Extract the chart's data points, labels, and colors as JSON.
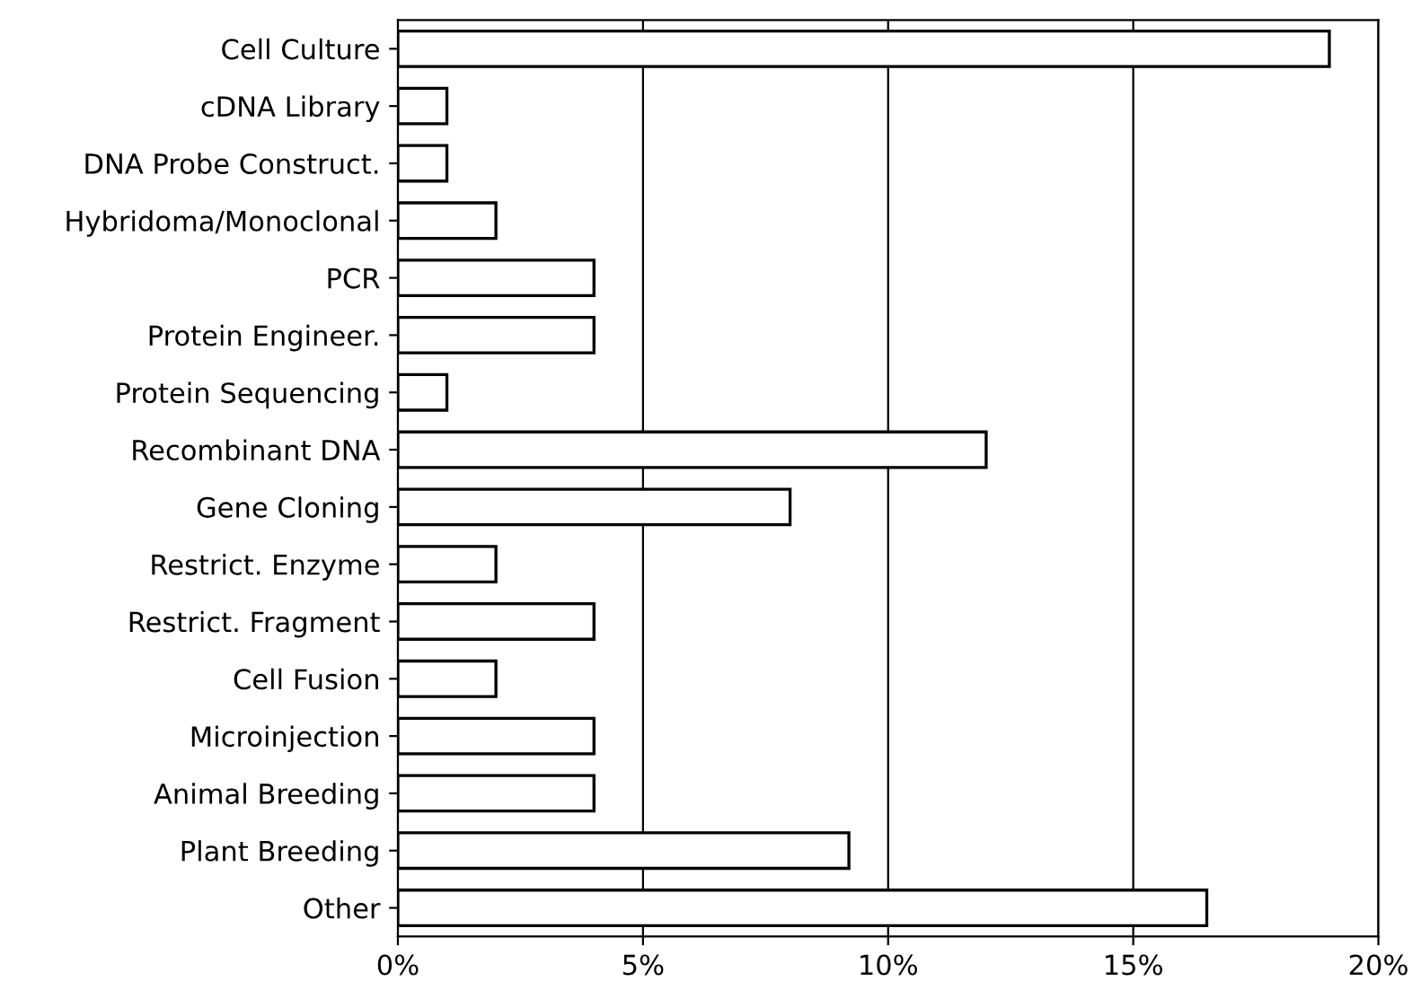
{
  "chart_data": {
    "type": "bar",
    "orientation": "horizontal",
    "categories": [
      "Cell Culture",
      "cDNA Library",
      "DNA Probe Construct.",
      "Hybridoma/Monoclonal",
      "PCR",
      "Protein Engineer.",
      "Protein Sequencing",
      "Recombinant DNA",
      "Gene Cloning",
      "Restrict. Enzyme",
      "Restrict. Fragment",
      "Cell Fusion",
      "Microinjection",
      "Animal Breeding",
      "Plant Breeding",
      "Other"
    ],
    "values": [
      19,
      1,
      1,
      2,
      4,
      4,
      1,
      12,
      8,
      2,
      4,
      2,
      4,
      4,
      9.2,
      16.5
    ],
    "color": "#ffffff",
    "xlim": [
      0,
      20
    ],
    "xticks": [
      {
        "value": 0,
        "label": "0%"
      },
      {
        "value": 5,
        "label": "5%"
      },
      {
        "value": 10,
        "label": "10%"
      },
      {
        "value": 15,
        "label": "15%"
      },
      {
        "value": 20,
        "label": "20%"
      }
    ],
    "grid": "x",
    "legend": false
  }
}
